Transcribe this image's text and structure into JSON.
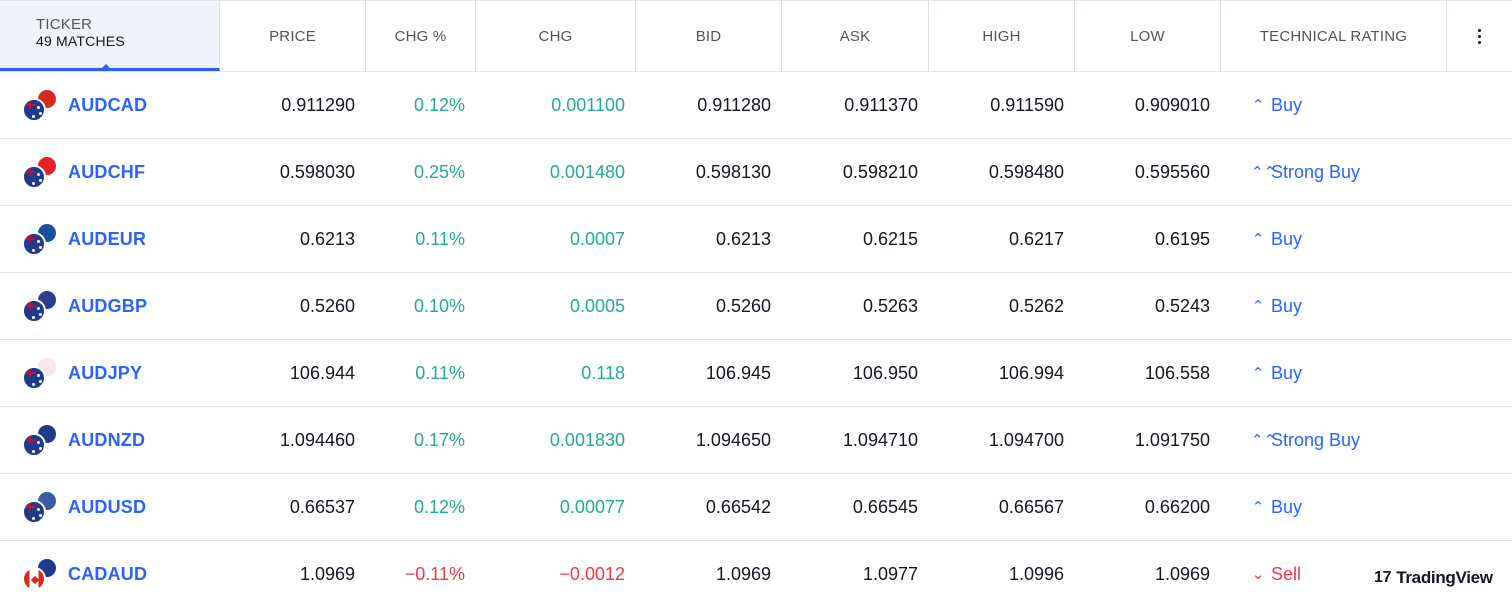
{
  "header": {
    "ticker_label": "TICKER",
    "matches": "49 MATCHES",
    "price": "PRICE",
    "chg_pct": "CHG %",
    "chg": "CHG",
    "bid": "BID",
    "ask": "ASK",
    "high": "HIGH",
    "low": "LOW",
    "technical_rating": "TECHNICAL RATING"
  },
  "rows": [
    {
      "symbol": "AUDCAD",
      "price": "0.911290",
      "chg_pct": "0.12%",
      "chg": "0.001100",
      "bid": "0.911280",
      "ask": "0.911370",
      "high": "0.911590",
      "low": "0.909010",
      "rating": "Buy",
      "rating_icon": "⌃",
      "direction": "pos",
      "flag_back": "#d52b1e"
    },
    {
      "symbol": "AUDCHF",
      "price": "0.598030",
      "chg_pct": "0.25%",
      "chg": "0.001480",
      "bid": "0.598130",
      "ask": "0.598210",
      "high": "0.598480",
      "low": "0.595560",
      "rating": "Strong Buy",
      "rating_icon": "⌃⌃",
      "direction": "pos",
      "flag_back": "#e8202a"
    },
    {
      "symbol": "AUDEUR",
      "price": "0.6213",
      "chg_pct": "0.11%",
      "chg": "0.0007",
      "bid": "0.6213",
      "ask": "0.6215",
      "high": "0.6217",
      "low": "0.6195",
      "rating": "Buy",
      "rating_icon": "⌃",
      "direction": "pos",
      "flag_back": "#1a4fa0"
    },
    {
      "symbol": "AUDGBP",
      "price": "0.5260",
      "chg_pct": "0.10%",
      "chg": "0.0005",
      "bid": "0.5260",
      "ask": "0.5263",
      "high": "0.5262",
      "low": "0.5243",
      "rating": "Buy",
      "rating_icon": "⌃",
      "direction": "pos",
      "flag_back": "#2b3f8c"
    },
    {
      "symbol": "AUDJPY",
      "price": "106.944",
      "chg_pct": "0.11%",
      "chg": "0.118",
      "bid": "106.945",
      "ask": "106.950",
      "high": "106.994",
      "low": "106.558",
      "rating": "Buy",
      "rating_icon": "⌃",
      "direction": "pos",
      "flag_back": "#f4e8e8"
    },
    {
      "symbol": "AUDNZD",
      "price": "1.094460",
      "chg_pct": "0.17%",
      "chg": "0.001830",
      "bid": "1.094650",
      "ask": "1.094710",
      "high": "1.094700",
      "low": "1.091750",
      "rating": "Strong Buy",
      "rating_icon": "⌃⌃",
      "direction": "pos",
      "flag_back": "#1f3a8a"
    },
    {
      "symbol": "AUDUSD",
      "price": "0.66537",
      "chg_pct": "0.12%",
      "chg": "0.00077",
      "bid": "0.66542",
      "ask": "0.66545",
      "high": "0.66567",
      "low": "0.66200",
      "rating": "Buy",
      "rating_icon": "⌃",
      "direction": "pos",
      "flag_back": "#3c5aa6"
    },
    {
      "symbol": "CADAUD",
      "price": "1.0969",
      "chg_pct": "−0.11%",
      "chg": "−0.0012",
      "bid": "1.0969",
      "ask": "1.0977",
      "high": "1.0996",
      "low": "1.0969",
      "rating": "Sell",
      "rating_icon": "⌄",
      "direction": "neg",
      "flag_back": "#1f3a8a"
    }
  ],
  "branding": {
    "logo_text": "TradingView",
    "logo_mark": "17"
  },
  "colors": {
    "accent": "#2962ff",
    "positive": "#22ab94",
    "negative": "#f23645"
  }
}
